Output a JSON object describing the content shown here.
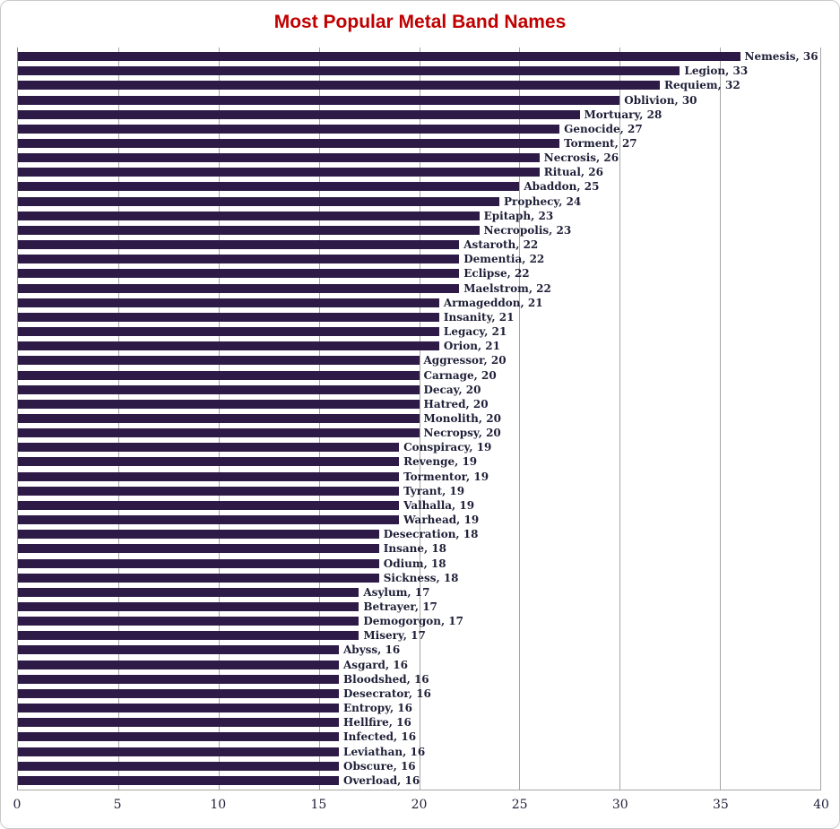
{
  "chart": {
    "title": "Most Popular Metal Band Names"
  },
  "chart_data": {
    "type": "bar",
    "orientation": "horizontal",
    "title": "Most Popular Metal Band Names",
    "categories": [
      "Nemesis",
      "Legion",
      "Requiem",
      "Oblivion",
      "Mortuary",
      "Genocide",
      "Torment",
      "Necrosis",
      "Ritual",
      "Abaddon",
      "Prophecy",
      "Epitaph",
      "Necropolis",
      "Astaroth",
      "Dementia",
      "Eclipse",
      "Maelstrom",
      "Armageddon",
      "Insanity",
      "Legacy",
      "Orion",
      "Aggressor",
      "Carnage",
      "Decay",
      "Hatred",
      "Monolith",
      "Necropsy",
      "Conspiracy",
      "Revenge",
      "Tormentor",
      "Tyrant",
      "Valhalla",
      "Warhead",
      "Desecration",
      "Insane",
      "Odium",
      "Sickness",
      "Asylum",
      "Betrayer",
      "Demogorgon",
      "Misery",
      "Abyss",
      "Asgard",
      "Bloodshed",
      "Desecrator",
      "Entropy",
      "Hellfire",
      "Infected",
      "Leviathan",
      "Obscure",
      "Overload"
    ],
    "values": [
      36,
      33,
      32,
      30,
      28,
      27,
      27,
      26,
      26,
      25,
      24,
      23,
      23,
      22,
      22,
      22,
      22,
      21,
      21,
      21,
      21,
      20,
      20,
      20,
      20,
      20,
      20,
      19,
      19,
      19,
      19,
      19,
      19,
      18,
      18,
      18,
      18,
      17,
      17,
      17,
      17,
      16,
      16,
      16,
      16,
      16,
      16,
      16,
      16,
      16,
      16
    ],
    "data_label_format": "{name}, {value}",
    "xlabel": "",
    "ylabel": "",
    "xlim": [
      0,
      40
    ],
    "xticks": [
      0,
      5,
      10,
      15,
      20,
      25,
      30,
      35,
      40
    ],
    "grid": "vertical",
    "legend": "none",
    "colors": {
      "bar": "#2E1A47",
      "title": "#C00000",
      "data_label": "#1F1F38",
      "tick_label": "#1F1F38",
      "gridline": "#A6A6A6",
      "axis_line": "#898989"
    }
  }
}
